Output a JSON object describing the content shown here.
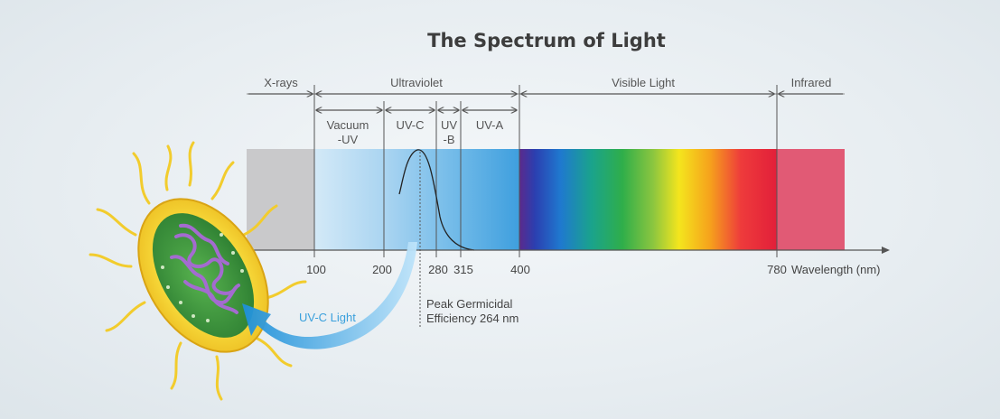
{
  "title": "The Spectrum of Light",
  "regions": {
    "xrays": "X-rays",
    "ultraviolet": "Ultraviolet",
    "visible": "Visible Light",
    "infrared": "Infrared"
  },
  "uv_bands": {
    "vacuum_line1": "Vacuum",
    "vacuum_line2": "-UV",
    "uvc": "UV-C",
    "uvb_line1": "UV",
    "uvb_line2": "-B",
    "uva": "UV-A"
  },
  "axis": {
    "ticks": [
      "100",
      "200",
      "280",
      "315",
      "400",
      "780"
    ],
    "unit_label": "Wavelength (nm)"
  },
  "annotations": {
    "peak_line1": "Peak Germicidal",
    "peak_line2": "Efficiency 264 nm",
    "uvc_light": "UV-C Light"
  },
  "colors": {
    "xray_band": "#c9c9cb",
    "uv_light": "#cfe6f6",
    "uv_dark": "#4aa3df",
    "infrared_band": "#e15a75",
    "arrow_blue": "#2f9fe0",
    "bacterium_shell": "#f2d02a",
    "bacterium_inner": "#3b9a3e",
    "bacterium_dna": "#a46bd0"
  }
}
